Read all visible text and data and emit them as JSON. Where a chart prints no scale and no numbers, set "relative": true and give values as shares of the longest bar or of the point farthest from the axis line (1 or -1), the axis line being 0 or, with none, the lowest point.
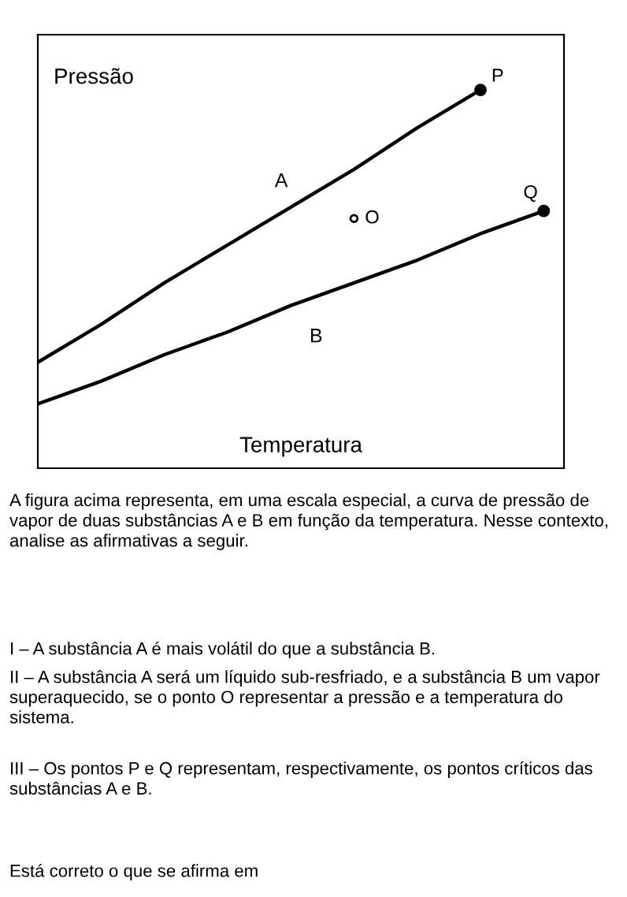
{
  "chart_data": {
    "type": "line",
    "relative": true,
    "xlabel": "Temperatura",
    "ylabel": "Pressão",
    "categories": [
      null,
      null,
      null,
      null,
      null,
      null,
      null,
      null,
      null
    ],
    "series": [
      {
        "name": "A",
        "color": "#000000",
        "values": [
          0.28,
          0.38,
          0.49,
          0.59,
          0.69,
          0.79,
          0.9,
          1.0,
          null
        ]
      },
      {
        "name": "B",
        "color": "#000000",
        "values": [
          0.17,
          0.23,
          0.3,
          0.36,
          0.43,
          0.49,
          0.55,
          0.62,
          0.68
        ]
      },
      {
        "name": "P",
        "marker": "circle",
        "color": "#000000",
        "values": [
          null,
          null,
          null,
          null,
          null,
          null,
          null,
          1.0,
          null
        ]
      },
      {
        "name": "Q",
        "marker": "circle",
        "color": "#000000",
        "values": [
          null,
          null,
          null,
          null,
          null,
          null,
          null,
          null,
          0.68
        ]
      },
      {
        "name": "O",
        "marker": "circle",
        "color": "#ffffff",
        "values": [
          null,
          null,
          null,
          null,
          null,
          0.66,
          null,
          null,
          null
        ]
      }
    ],
    "annotations": [
      "A figura acima representa, em uma escala especial, a curva de pressão de vapor de duas substâncias A e B em função da temperatura. Nesse contexto, analise as afirmativas a seguir.",
      "I – A substância A é mais volátil do que a substância B.",
      "II – A substância A será um líquido sub-resfriado, e a substância B um vapor superaquecido, se o ponto O representar a pressão e a temperatura do sistema.",
      "III – Os pontos P e Q representam, respectivamente, os pontos críticos das substâncias A e B.",
      "Está correto o que se afirma em"
    ]
  }
}
